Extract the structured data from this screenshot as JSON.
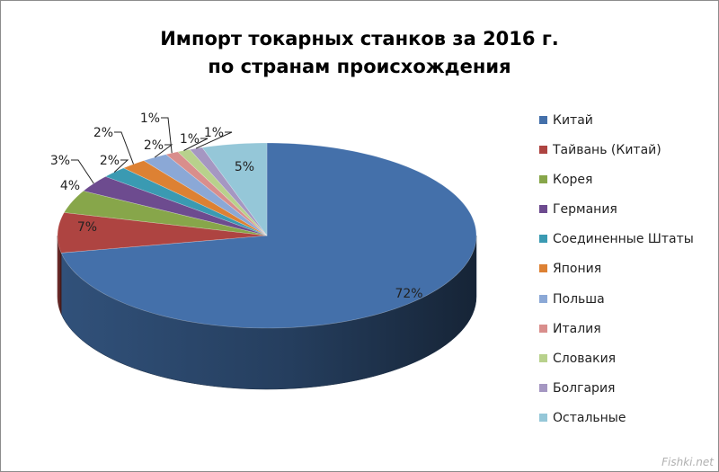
{
  "chart_data": {
    "type": "pie",
    "title_lines": [
      "Импорт токарных станков за  2016 г.",
      "по странам происхождения"
    ],
    "categories": [
      "Китай",
      "Тайвань (Китай)",
      "Корея",
      "Германия",
      "Соединенные Штаты",
      "Япония",
      "Польша",
      "Италия",
      "Словакия",
      "Болгария",
      "Остальные"
    ],
    "values": [
      72,
      7,
      4,
      3,
      2,
      2,
      2,
      1,
      1,
      1,
      5
    ],
    "data_labels": [
      "72%",
      "7%",
      "4%",
      "3%",
      "2%",
      "2%",
      "2%",
      "1%",
      "1%",
      "1%",
      "5%"
    ],
    "colors": [
      "#4470aa",
      "#ae4441",
      "#87a64a",
      "#6d4b8f",
      "#3a9ab2",
      "#dd8133",
      "#8ba8d6",
      "#d98e8c",
      "#b8d18c",
      "#a597c2",
      "#95c7d8"
    ],
    "legend_position": "right",
    "style": "3d"
  },
  "watermark": "Fishki.net"
}
